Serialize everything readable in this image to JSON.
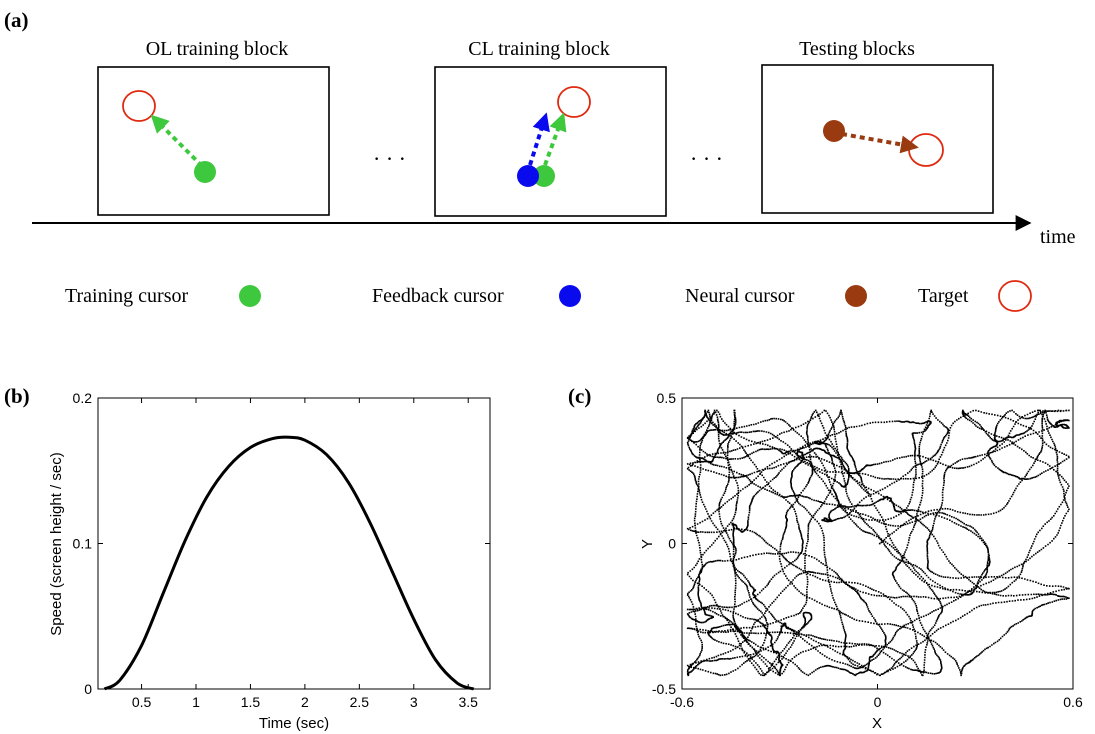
{
  "panel_a": {
    "label": "(a)",
    "blocks": [
      {
        "title": "OL training block"
      },
      {
        "title": "CL training block"
      },
      {
        "title": "Testing blocks"
      }
    ],
    "ellipsis": "· · ·",
    "time_label": "time",
    "legend": [
      {
        "label": "Training cursor",
        "kind": "filled",
        "color": "#3ec83e"
      },
      {
        "label": "Feedback cursor",
        "kind": "filled",
        "color": "#0a0aee"
      },
      {
        "label": "Neural cursor",
        "kind": "filled",
        "color": "#9a3a10"
      },
      {
        "label": "Target",
        "kind": "ring",
        "color": "#e02a10"
      }
    ],
    "colors": {
      "training": "#3ec83e",
      "feedback": "#0a0aee",
      "neural": "#9a3a10",
      "target": "#e02a10"
    }
  },
  "chart_data": [
    {
      "panel_label": "(b)",
      "type": "line",
      "title": "",
      "xlabel": "Time (sec)",
      "ylabel": "Speed (screen height / sec)",
      "xlim": [
        0.1,
        3.7
      ],
      "ylim": [
        0,
        0.2
      ],
      "x_ticks": [
        "0.5",
        "1",
        "1.5",
        "2",
        "2.5",
        "3",
        "3.5"
      ],
      "y_ticks": [
        "0",
        "0.1",
        "0.2"
      ],
      "grid": false,
      "series": [
        {
          "x": [
            0.16,
            0.3,
            0.5,
            0.7,
            0.9,
            1.1,
            1.3,
            1.5,
            1.7,
            1.86,
            2.0,
            2.2,
            2.4,
            2.6,
            2.8,
            3.0,
            3.2,
            3.4,
            3.55
          ],
          "y": [
            0.0,
            0.006,
            0.03,
            0.066,
            0.102,
            0.132,
            0.153,
            0.166,
            0.172,
            0.173,
            0.171,
            0.161,
            0.142,
            0.114,
            0.081,
            0.048,
            0.02,
            0.004,
            0.0
          ]
        }
      ]
    },
    {
      "panel_label": "(c)",
      "type": "scatter",
      "title": "",
      "xlabel": "X",
      "ylabel": "Y",
      "xlim": [
        -0.6,
        0.6
      ],
      "ylim": [
        -0.5,
        0.5
      ],
      "x_ticks": [
        "-0.6",
        "0",
        "0.6"
      ],
      "y_ticks": [
        "-0.5",
        "0",
        "0.5"
      ],
      "grid": false,
      "point_count_approx": 6000
    }
  ]
}
